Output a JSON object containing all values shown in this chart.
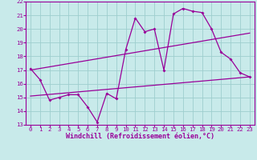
{
  "title": "",
  "xlabel": "Windchill (Refroidissement éolien,°C)",
  "bg_color": "#c8eaea",
  "grid_color": "#9ecece",
  "line_color": "#990099",
  "xlim": [
    -0.5,
    23.5
  ],
  "ylim": [
    13,
    22
  ],
  "xticks": [
    0,
    1,
    2,
    3,
    4,
    5,
    6,
    7,
    8,
    9,
    10,
    11,
    12,
    13,
    14,
    15,
    16,
    17,
    18,
    19,
    20,
    21,
    22,
    23
  ],
  "yticks": [
    13,
    14,
    15,
    16,
    17,
    18,
    19,
    20,
    21,
    22
  ],
  "jagged_x": [
    0,
    1,
    2,
    3,
    4,
    5,
    6,
    7,
    8,
    9,
    10,
    11,
    12,
    13,
    14,
    15,
    16,
    17,
    18,
    19,
    20,
    21,
    22,
    23
  ],
  "jagged_y": [
    17.1,
    16.3,
    14.8,
    15.0,
    15.2,
    15.2,
    14.3,
    13.2,
    15.3,
    14.9,
    18.5,
    20.8,
    19.8,
    20.0,
    17.0,
    21.1,
    21.5,
    21.3,
    21.2,
    20.0,
    18.3,
    17.8,
    16.8,
    16.5
  ],
  "line1_x": [
    0,
    23
  ],
  "line1_y": [
    15.1,
    16.5
  ],
  "line2_x": [
    0,
    23
  ],
  "line2_y": [
    17.0,
    19.7
  ],
  "font_color": "#990099",
  "tick_fontsize": 5.2,
  "label_fontsize": 6.0
}
